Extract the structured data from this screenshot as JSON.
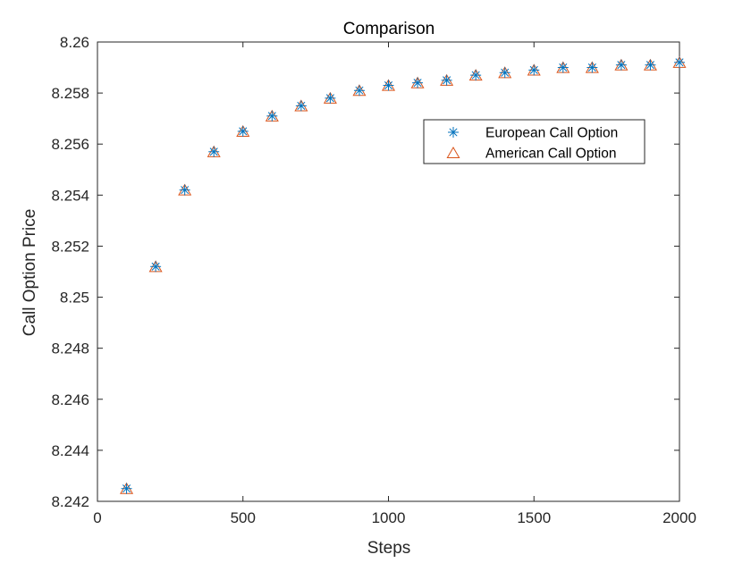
{
  "chart_data": {
    "type": "scatter",
    "title": "Comparison",
    "xlabel": "Steps",
    "ylabel": "Call Option Price",
    "xlim": [
      0,
      2000
    ],
    "ylim": [
      8.242,
      8.26
    ],
    "xticks": [
      0,
      500,
      1000,
      1500,
      2000
    ],
    "xtick_labels": [
      "0",
      "500",
      "1000",
      "1500",
      "2000"
    ],
    "yticks": [
      8.242,
      8.244,
      8.246,
      8.248,
      8.25,
      8.252,
      8.254,
      8.256,
      8.258,
      8.26
    ],
    "ytick_labels": [
      "8.242",
      "8.244",
      "8.246",
      "8.248",
      "8.25",
      "8.252",
      "8.254",
      "8.256",
      "8.258",
      "8.26"
    ],
    "grid": false,
    "legend_position": "top-right",
    "series": [
      {
        "name": "European Call Option",
        "marker": "asterisk",
        "color": "#0072BD",
        "x": [
          100,
          200,
          300,
          400,
          500,
          600,
          700,
          800,
          900,
          1000,
          1100,
          1200,
          1300,
          1400,
          1500,
          1600,
          1700,
          1800,
          1900,
          2000
        ],
        "y": [
          8.2425,
          8.2512,
          8.2542,
          8.2557,
          8.2565,
          8.2571,
          8.2575,
          8.2578,
          8.2581,
          8.2583,
          8.2584,
          8.2585,
          8.2587,
          8.2588,
          8.2589,
          8.259,
          8.259,
          8.2591,
          8.2591,
          8.2592
        ]
      },
      {
        "name": "American Call Option",
        "marker": "triangle",
        "color": "#D95319",
        "x": [
          100,
          200,
          300,
          400,
          500,
          600,
          700,
          800,
          900,
          1000,
          1100,
          1200,
          1300,
          1400,
          1500,
          1600,
          1700,
          1800,
          1900,
          2000
        ],
        "y": [
          8.2425,
          8.2512,
          8.2542,
          8.2557,
          8.2565,
          8.2571,
          8.2575,
          8.2578,
          8.2581,
          8.2583,
          8.2584,
          8.2585,
          8.2587,
          8.2588,
          8.2589,
          8.259,
          8.259,
          8.2591,
          8.2591,
          8.2592
        ]
      }
    ]
  }
}
